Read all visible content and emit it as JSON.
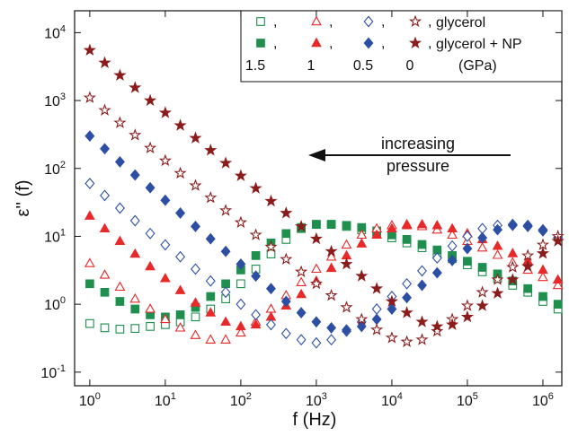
{
  "chart_data": {
    "type": "scatter",
    "xlabel": "f (Hz)",
    "ylabel": "ε'' (f)",
    "log_x": true,
    "log_y": true,
    "xlim": [
      0.63,
      1780000
    ],
    "ylim": [
      0.063,
      21000
    ],
    "xticks": [
      {
        "value": 1,
        "label": "10",
        "exponent": "0"
      },
      {
        "value": 10,
        "label": "10",
        "exponent": "1"
      },
      {
        "value": 100,
        "label": "10",
        "exponent": "2"
      },
      {
        "value": 1000,
        "label": "10",
        "exponent": "3"
      },
      {
        "value": 10000,
        "label": "10",
        "exponent": "4"
      },
      {
        "value": 100000,
        "label": "10",
        "exponent": "5"
      },
      {
        "value": 1000000,
        "label": "10",
        "exponent": "6"
      }
    ],
    "yticks": [
      {
        "value": 0.1,
        "label": "10",
        "exponent": "-1"
      },
      {
        "value": 1,
        "label": "10",
        "exponent": "0"
      },
      {
        "value": 10,
        "label": "10",
        "exponent": "1"
      },
      {
        "value": 100,
        "label": "10",
        "exponent": "2"
      },
      {
        "value": 1000,
        "label": "10",
        "exponent": "3"
      },
      {
        "value": 10000,
        "label": "10",
        "exponent": "4"
      }
    ],
    "x": [
      1,
      1.58,
      2.51,
      3.98,
      6.31,
      10,
      15.8,
      25.1,
      39.8,
      63.1,
      100,
      158,
      251,
      398,
      631,
      1000,
      1580,
      2510,
      3980,
      6310,
      10000,
      15800,
      25100,
      39800,
      63100,
      100000,
      158000,
      251000,
      398000,
      631000,
      1000000,
      1580000
    ],
    "legend": {
      "samples": [
        "glycerol",
        "glycerol + NP"
      ],
      "pressures": [
        "1.5",
        "1",
        "0.5",
        "0"
      ],
      "unit": "(GPa)",
      "separator": ","
    },
    "annotation": {
      "lines": [
        "increasing",
        "pressure"
      ]
    },
    "series": [
      {
        "marker": "square",
        "filled": false,
        "color": "#1f8f4e",
        "values": [
          0.52,
          0.45,
          0.43,
          0.44,
          0.47,
          0.5,
          0.55,
          0.65,
          0.85,
          1.2,
          2.0,
          3.3,
          5.5,
          9,
          13,
          15,
          15,
          14,
          12.5,
          11,
          9.5,
          8,
          6.8,
          5.6,
          4.7,
          3.8,
          3.0,
          2.4,
          1.9,
          1.5,
          1.1,
          0.85
        ]
      },
      {
        "marker": "square",
        "filled": true,
        "color": "#1f8f4e",
        "values": [
          2.0,
          1.5,
          1.1,
          0.85,
          0.7,
          0.65,
          0.7,
          0.9,
          1.3,
          2.0,
          3.2,
          5.2,
          8,
          11,
          13.5,
          15,
          15,
          14.5,
          13.5,
          12,
          10.5,
          9,
          7.6,
          6.3,
          5.2,
          4.3,
          3.5,
          2.8,
          2.2,
          1.7,
          1.3,
          1.0
        ]
      },
      {
        "marker": "triangle",
        "filled": false,
        "color": "#e8292a",
        "values": [
          4.0,
          2.7,
          1.8,
          1.2,
          0.85,
          0.6,
          0.45,
          0.35,
          0.3,
          0.3,
          0.38,
          0.55,
          0.85,
          1.35,
          2.1,
          3.3,
          5,
          7.5,
          10.5,
          13,
          14.5,
          15,
          14,
          12.5,
          10.5,
          8.5,
          6.8,
          5.3,
          4.1,
          3.2,
          2.5,
          1.9
        ]
      },
      {
        "marker": "triangle",
        "filled": true,
        "color": "#e8292a",
        "values": [
          20,
          13,
          8.5,
          5.5,
          3.6,
          2.4,
          1.6,
          1.05,
          0.75,
          0.55,
          0.47,
          0.5,
          0.65,
          0.95,
          1.4,
          2.2,
          3.4,
          5.2,
          7.8,
          10.5,
          13,
          14.5,
          15,
          14.5,
          13,
          11,
          9,
          7.2,
          5.6,
          4.3,
          3.2,
          2.3
        ]
      },
      {
        "marker": "diamond",
        "filled": false,
        "color": "#2d4fa3",
        "values": [
          60,
          40,
          26,
          17,
          11,
          7.5,
          5,
          3.3,
          2.2,
          1.5,
          1.0,
          0.7,
          0.5,
          0.37,
          0.3,
          0.27,
          0.3,
          0.4,
          0.55,
          0.85,
          1.3,
          2.0,
          3.1,
          4.8,
          7.2,
          10,
          13,
          14.5,
          15,
          14,
          12,
          9.5
        ]
      },
      {
        "marker": "diamond",
        "filled": true,
        "color": "#2d4fa3",
        "values": [
          300,
          195,
          125,
          80,
          52,
          34,
          22,
          14,
          9.2,
          6,
          3.9,
          2.6,
          1.7,
          1.1,
          0.75,
          0.55,
          0.45,
          0.42,
          0.47,
          0.6,
          0.85,
          1.25,
          1.9,
          2.9,
          4.4,
          6.6,
          9.5,
          12.5,
          14.5,
          14.5,
          12.5,
          9.5
        ]
      },
      {
        "marker": "star",
        "filled": false,
        "color": "#8b1c1c",
        "values": [
          1100,
          720,
          470,
          310,
          200,
          130,
          85,
          56,
          37,
          24,
          16,
          10.5,
          7,
          4.6,
          3.0,
          2.0,
          1.35,
          0.9,
          0.6,
          0.42,
          0.32,
          0.28,
          0.3,
          0.4,
          0.6,
          0.95,
          1.5,
          2.3,
          3.5,
          5.2,
          7.5,
          10
        ]
      },
      {
        "marker": "star",
        "filled": true,
        "color": "#8b1c1c",
        "values": [
          5500,
          3600,
          2350,
          1550,
          1000,
          660,
          430,
          280,
          185,
          120,
          78,
          51,
          33,
          22,
          14,
          9.2,
          6,
          3.9,
          2.6,
          1.7,
          1.1,
          0.75,
          0.55,
          0.47,
          0.5,
          0.65,
          0.95,
          1.45,
          2.3,
          3.6,
          5.6,
          8.5
        ]
      }
    ]
  }
}
